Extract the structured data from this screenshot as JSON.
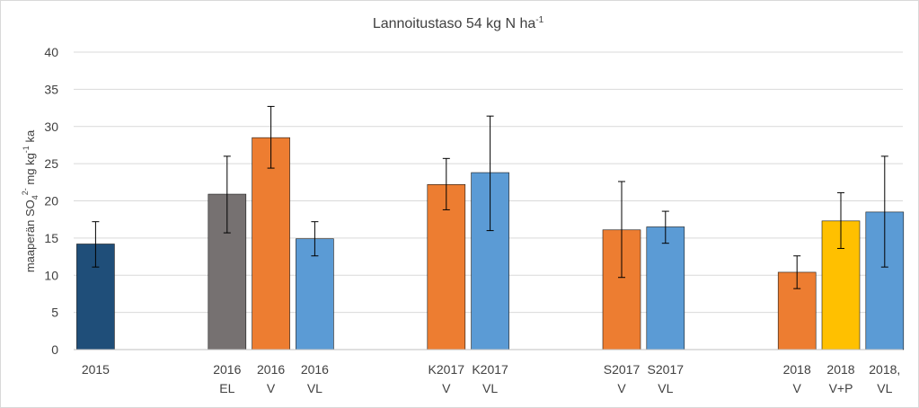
{
  "chart_data": {
    "type": "bar",
    "title": "Lannoitustaso 54 kg N ha",
    "title_sup": "-1",
    "ylabel_parts": [
      "maaperän SO",
      "4",
      "2-",
      " mg kg",
      "-1",
      " ka"
    ],
    "ylim": [
      0,
      40
    ],
    "yticks": [
      0,
      5,
      10,
      15,
      20,
      25,
      30,
      35,
      40
    ],
    "grid": true,
    "bars": [
      {
        "label": [
          "2015"
        ],
        "value": 14.2,
        "err_low": 11.1,
        "err_high": 17.2,
        "color": "#1f4e79",
        "slot": 0
      },
      {
        "label": [
          "2016",
          "EL"
        ],
        "value": 20.9,
        "err_low": 15.7,
        "err_high": 26.0,
        "color": "#767171",
        "slot": 3
      },
      {
        "label": [
          "2016",
          "V"
        ],
        "value": 28.5,
        "err_low": 24.4,
        "err_high": 32.7,
        "color": "#ed7d31",
        "slot": 4
      },
      {
        "label": [
          "2016",
          "VL"
        ],
        "value": 14.9,
        "err_low": 12.6,
        "err_high": 17.2,
        "color": "#5b9bd5",
        "slot": 5
      },
      {
        "label": [
          "K2017",
          "V"
        ],
        "value": 22.2,
        "err_low": 18.8,
        "err_high": 25.7,
        "color": "#ed7d31",
        "slot": 8
      },
      {
        "label": [
          "K2017",
          "VL"
        ],
        "value": 23.8,
        "err_low": 16.0,
        "err_high": 31.4,
        "color": "#5b9bd5",
        "slot": 9
      },
      {
        "label": [
          "S2017",
          "V"
        ],
        "value": 16.1,
        "err_low": 9.7,
        "err_high": 22.6,
        "color": "#ed7d31",
        "slot": 12
      },
      {
        "label": [
          "S2017",
          "VL"
        ],
        "value": 16.5,
        "err_low": 14.3,
        "err_high": 18.6,
        "color": "#5b9bd5",
        "slot": 13
      },
      {
        "label": [
          "2018",
          "V"
        ],
        "value": 10.4,
        "err_low": 8.2,
        "err_high": 12.6,
        "color": "#ed7d31",
        "slot": 16
      },
      {
        "label": [
          "2018",
          "V+P"
        ],
        "value": 17.3,
        "err_low": 13.6,
        "err_high": 21.1,
        "color": "#ffc000",
        "slot": 17
      },
      {
        "label": [
          "2018,",
          "VL"
        ],
        "value": 18.5,
        "err_low": 11.1,
        "err_high": 26.0,
        "color": "#5b9bd5",
        "slot": 18
      }
    ]
  }
}
